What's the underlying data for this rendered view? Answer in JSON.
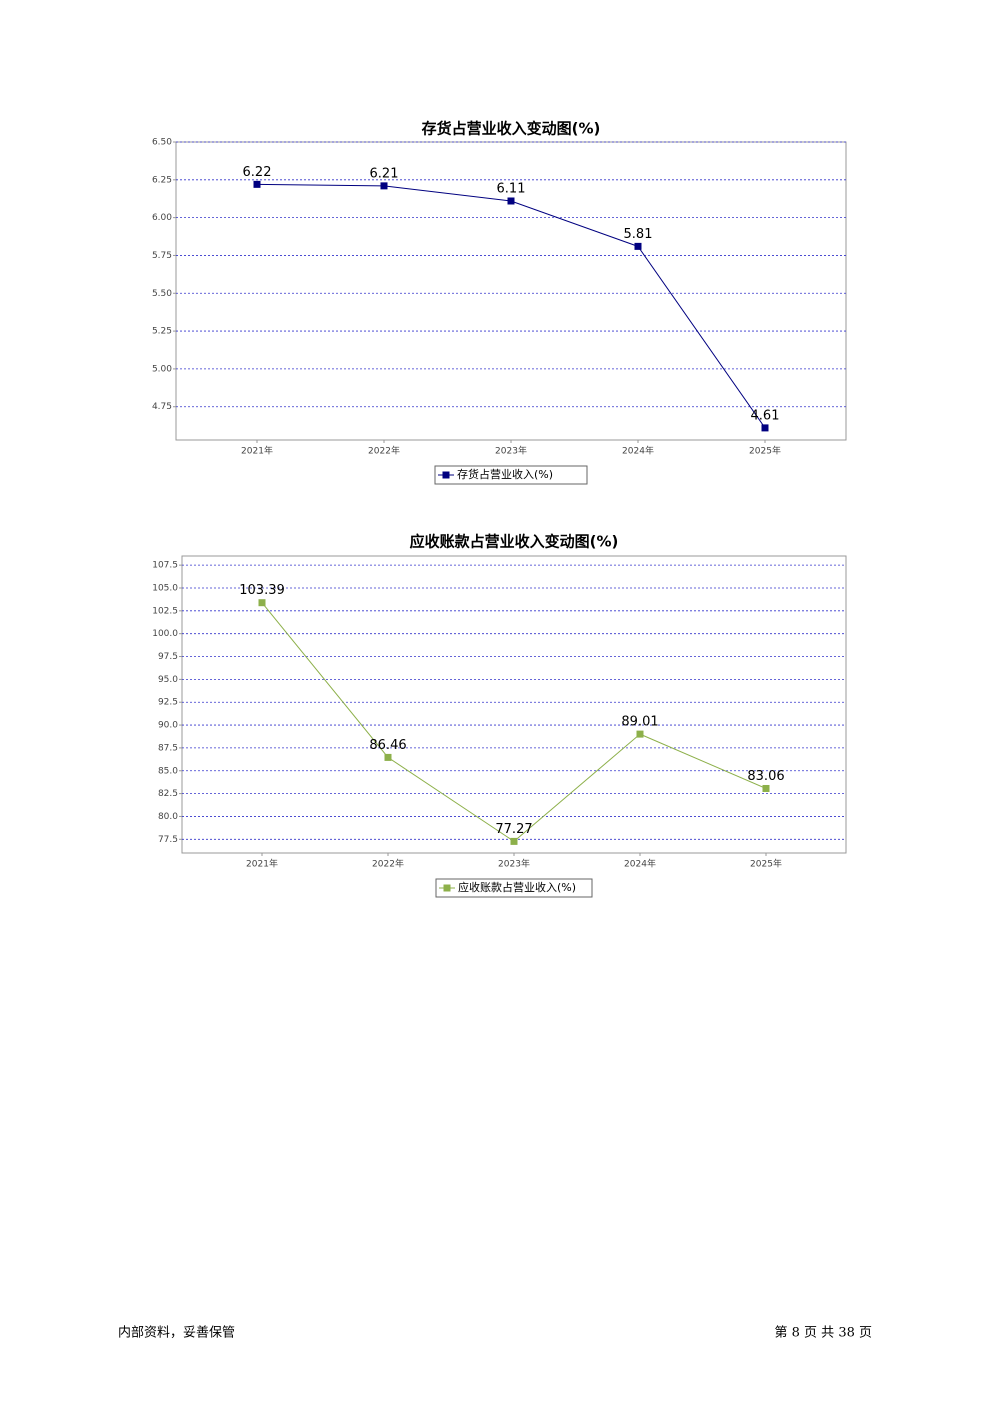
{
  "chart_data": [
    {
      "type": "line",
      "title": "存货占营业收入变动图(%)",
      "categories": [
        "2021年",
        "2022年",
        "2023年",
        "2024年",
        "2025年"
      ],
      "series": [
        {
          "name": "存货占营业收入(%)",
          "color": "#000080",
          "values": [
            6.22,
            6.21,
            6.11,
            5.81,
            4.61
          ]
        }
      ],
      "ylim": [
        4.53,
        6.5
      ],
      "yticks": [
        4.75,
        {
          "value": 5,
          "label": "5.00"
        },
        5.25,
        {
          "value": 5.5,
          "label": "5.50"
        },
        5.75,
        {
          "value": 6,
          "label": "6.00"
        },
        6.25,
        {
          "value": 6.5,
          "label": "6.50"
        }
      ],
      "grid": true,
      "legend": "bottom"
    },
    {
      "type": "line",
      "title": "应收账款占营业收入变动图(%)",
      "categories": [
        "2021年",
        "2022年",
        "2023年",
        "2024年",
        "2025年"
      ],
      "series": [
        {
          "name": "应收账款占营业收入(%)",
          "color": "#8db04a",
          "values": [
            103.39,
            86.46,
            77.27,
            89.01,
            83.06
          ]
        }
      ],
      "ylim": [
        76.0,
        108.5
      ],
      "yticks": [
        77.5,
        {
          "value": 80,
          "label": "80.0"
        },
        82.5,
        {
          "value": 85,
          "label": "85.0"
        },
        87.5,
        {
          "value": 90,
          "label": "90.0"
        },
        92.5,
        {
          "value": 95,
          "label": "95.0"
        },
        97.5,
        {
          "value": 100,
          "label": "100.0"
        },
        102.5,
        {
          "value": 105,
          "label": "105.0"
        },
        107.5
      ],
      "grid": true,
      "legend": "bottom"
    }
  ],
  "footer": {
    "left": "内部资料，妥善保管",
    "right": "第 8 页   共 38 页"
  }
}
